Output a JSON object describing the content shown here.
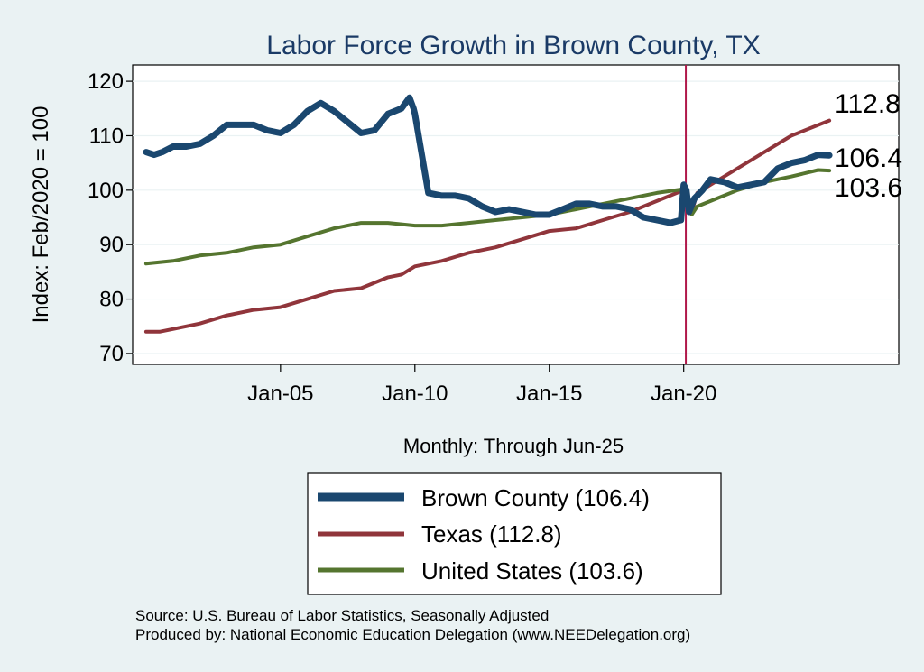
{
  "chart_data": {
    "type": "line",
    "title": "Labor Force Growth in Brown  County, TX",
    "ylabel": "Index: Feb/2020 = 100",
    "xlabel": "Monthly: Through Jun-25",
    "ylim": [
      68,
      123
    ],
    "xlim": [
      1999.5,
      2028.0
    ],
    "yticks": [
      70,
      80,
      90,
      100,
      110,
      120
    ],
    "xticks": [
      {
        "value": 2005.0,
        "label": "Jan-05"
      },
      {
        "value": 2010.0,
        "label": "Jan-10"
      },
      {
        "value": 2015.0,
        "label": "Jan-15"
      },
      {
        "value": 2020.0,
        "label": "Jan-20"
      }
    ],
    "reference_line": {
      "x": 2020.08,
      "color": "#b0184a"
    },
    "series": [
      {
        "name": "Brown  County",
        "legend_label": "Brown  County (106.4)",
        "end_label": "106.4",
        "color": "#1a476f",
        "x": [
          2000.0,
          2000.3,
          2000.6,
          2001.0,
          2001.5,
          2002.0,
          2002.5,
          2003.0,
          2003.5,
          2004.0,
          2004.5,
          2005.0,
          2005.5,
          2006.0,
          2006.5,
          2007.0,
          2007.5,
          2008.0,
          2008.5,
          2009.0,
          2009.5,
          2009.8,
          2009.95,
          2010.0,
          2010.5,
          2011.0,
          2011.5,
          2012.0,
          2012.5,
          2013.0,
          2013.5,
          2014.0,
          2014.5,
          2015.0,
          2015.5,
          2016.0,
          2016.5,
          2017.0,
          2017.5,
          2018.0,
          2018.5,
          2019.0,
          2019.5,
          2019.9,
          2020.0,
          2020.1,
          2020.2,
          2020.4,
          2020.7,
          2021.0,
          2021.5,
          2022.0,
          2022.5,
          2023.0,
          2023.5,
          2024.0,
          2024.5,
          2025.0,
          2025.42
        ],
        "values": [
          107,
          106.5,
          107,
          108,
          108,
          108.5,
          110,
          112,
          112,
          112,
          111,
          110.5,
          112,
          114.5,
          116,
          114.5,
          112.5,
          110.5,
          111,
          114,
          115,
          117,
          115,
          114,
          99.5,
          99,
          99,
          98.5,
          97,
          96,
          96.5,
          96,
          95.5,
          95.5,
          96.5,
          97.5,
          97.5,
          97,
          97,
          96.5,
          95,
          94.5,
          94,
          94.5,
          101,
          100,
          96,
          98.5,
          100,
          102,
          101.5,
          100.5,
          101,
          101.5,
          104,
          105,
          105.5,
          106.5,
          106.4
        ]
      },
      {
        "name": "Texas",
        "legend_label": "Texas (112.8)",
        "end_label": "112.8",
        "color": "#90353b",
        "x": [
          2000.0,
          2000.5,
          2001.0,
          2002.0,
          2003.0,
          2004.0,
          2005.0,
          2006.0,
          2007.0,
          2008.0,
          2009.0,
          2009.5,
          2010.0,
          2011.0,
          2012.0,
          2013.0,
          2014.0,
          2015.0,
          2016.0,
          2017.0,
          2018.0,
          2019.0,
          2020.0,
          2020.15,
          2020.3,
          2020.5,
          2021.0,
          2022.0,
          2023.0,
          2024.0,
          2025.42
        ],
        "values": [
          74,
          74,
          74.5,
          75.5,
          77,
          78,
          78.5,
          80,
          81.5,
          82,
          84,
          84.5,
          86,
          87,
          88.5,
          89.5,
          91,
          92.5,
          93,
          94.5,
          96,
          98,
          100,
          99,
          96,
          99.5,
          101,
          104,
          107,
          110,
          112.8
        ]
      },
      {
        "name": "United States",
        "legend_label": "United States (103.6)",
        "end_label": "103.6",
        "color": "#55752f",
        "x": [
          2000.0,
          2001.0,
          2002.0,
          2003.0,
          2004.0,
          2005.0,
          2006.0,
          2007.0,
          2008.0,
          2009.0,
          2010.0,
          2011.0,
          2012.0,
          2013.0,
          2014.0,
          2015.0,
          2016.0,
          2017.0,
          2018.0,
          2019.0,
          2020.0,
          2020.15,
          2020.3,
          2020.5,
          2021.0,
          2022.0,
          2023.0,
          2024.0,
          2025.0,
          2025.42
        ],
        "values": [
          86.5,
          87,
          88,
          88.5,
          89.5,
          90,
          91.5,
          93,
          94,
          94,
          93.5,
          93.5,
          94,
          94.5,
          95,
          95.5,
          96.5,
          97.5,
          98.5,
          99.5,
          100.2,
          98,
          95.5,
          97,
          98,
          100,
          101.5,
          102.5,
          103.7,
          103.6
        ]
      }
    ]
  },
  "legend": {
    "items": [
      {
        "label": "Brown  County (106.4)",
        "color": "#1a476f"
      },
      {
        "label": "Texas (112.8)",
        "color": "#90353b"
      },
      {
        "label": "United States (103.6)",
        "color": "#55752f"
      }
    ]
  },
  "footer": {
    "source": "Source: U.S. Bureau of Labor Statistics, Seasonally Adjusted",
    "producer": "Produced by: National Economic Education Delegation (www.NEEDelegation.org)"
  }
}
